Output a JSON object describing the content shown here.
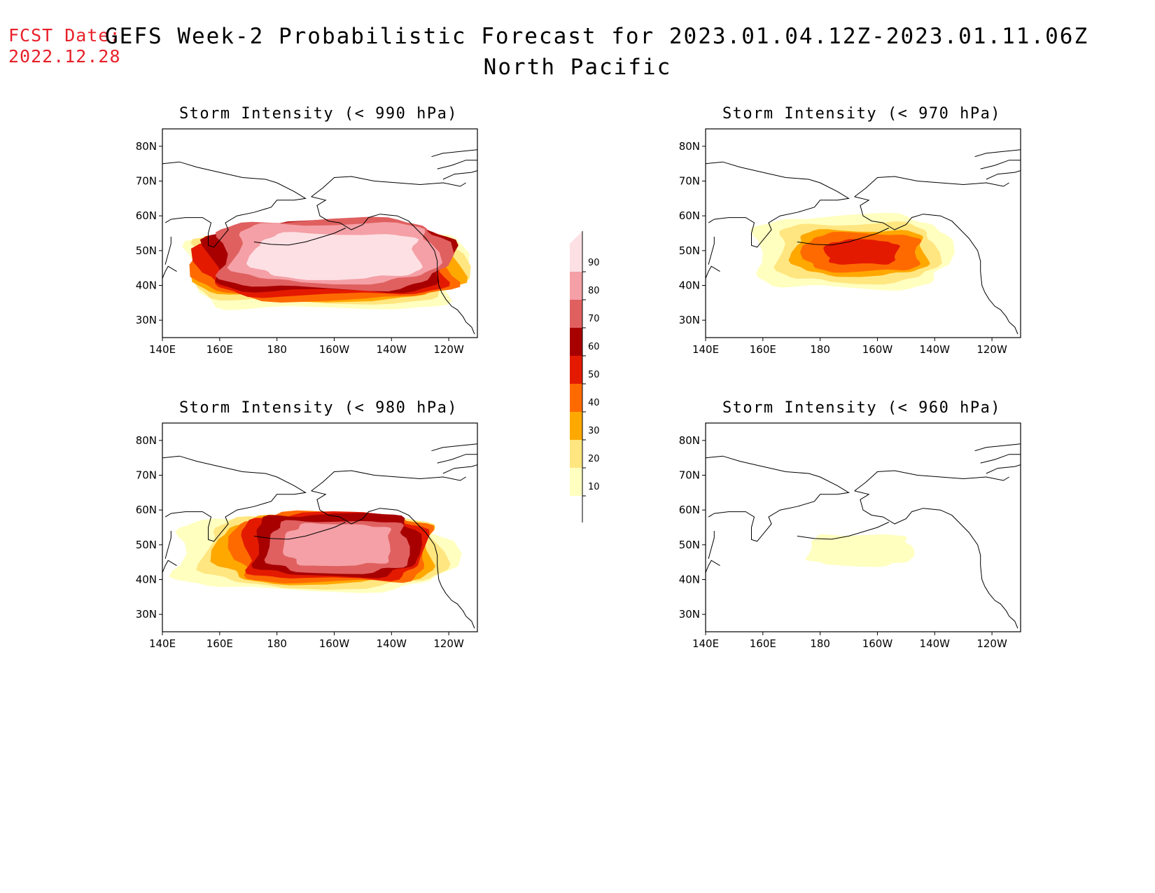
{
  "forecast_date": {
    "label": "FCST Date:",
    "value": "2022.12.28"
  },
  "title": {
    "line1": "GEFS Week-2 Probabilistic Forecast for 2023.01.04.12Z-2023.01.11.06Z",
    "line2": "North Pacific"
  },
  "colors": {
    "label_red": "#e8202a",
    "levels": [
      "#ffffc0",
      "#ffe680",
      "#ffa800",
      "#ff6a00",
      "#e41a00",
      "#a80000",
      "#e06060",
      "#f4a0a6",
      "#fde0e4"
    ]
  },
  "chart_data": [
    {
      "type": "heatmap",
      "title": "Storm Intensity (< 990 hPa)",
      "x_ticks": [
        "140E",
        "160E",
        "180",
        "160W",
        "140W",
        "120W"
      ],
      "y_ticks": [
        "80N",
        "70N",
        "60N",
        "50N",
        "40N",
        "30N"
      ],
      "xlim": [
        140,
        250
      ],
      "ylim": [
        25,
        85
      ],
      "field": [
        {
          "level": 10,
          "lon": [
            150,
            245
          ],
          "lat": [
            33,
            57
          ]
        },
        {
          "level": 20,
          "lon": [
            151,
            244
          ],
          "lat": [
            35,
            56
          ]
        },
        {
          "level": 30,
          "lon": [
            152,
            243
          ],
          "lat": [
            36,
            56
          ]
        },
        {
          "level": 40,
          "lon": [
            153,
            242
          ],
          "lat": [
            36,
            56
          ]
        },
        {
          "level": 50,
          "lon": [
            154,
            241
          ],
          "lat": [
            37,
            57
          ]
        },
        {
          "level": 60,
          "lon": [
            156,
            240
          ],
          "lat": [
            38,
            58
          ]
        },
        {
          "level": 70,
          "lon": [
            159,
            238
          ],
          "lat": [
            39,
            59
          ]
        },
        {
          "level": 80,
          "lon": [
            165,
            235
          ],
          "lat": [
            41,
            58
          ]
        },
        {
          "level": 90,
          "lon": [
            172,
            230
          ],
          "lat": [
            42,
            55
          ]
        }
      ]
    },
    {
      "type": "heatmap",
      "title": "Storm Intensity (< 970 hPa)",
      "x_ticks": [
        "140E",
        "160E",
        "180",
        "160W",
        "140W",
        "120W"
      ],
      "y_ticks": [
        "80N",
        "70N",
        "60N",
        "50N",
        "40N",
        "30N"
      ],
      "xlim": [
        140,
        250
      ],
      "ylim": [
        25,
        85
      ],
      "field": [
        {
          "level": 10,
          "lon": [
            157,
            224
          ],
          "lat": [
            39,
            60
          ]
        },
        {
          "level": 20,
          "lon": [
            165,
            220
          ],
          "lat": [
            41,
            58
          ]
        },
        {
          "level": 30,
          "lon": [
            171,
            217
          ],
          "lat": [
            43,
            56
          ]
        },
        {
          "level": 40,
          "lon": [
            175,
            215
          ],
          "lat": [
            44,
            55
          ]
        },
        {
          "level": 50,
          "lon": [
            182,
            207
          ],
          "lat": [
            46,
            53
          ]
        }
      ]
    },
    {
      "type": "heatmap",
      "title": "Storm Intensity (< 980 hPa)",
      "x_ticks": [
        "140E",
        "160E",
        "180",
        "160W",
        "140W",
        "120W"
      ],
      "y_ticks": [
        "80N",
        "70N",
        "60N",
        "50N",
        "40N",
        "30N"
      ],
      "xlim": [
        140,
        250
      ],
      "ylim": [
        25,
        85
      ],
      "field": [
        {
          "level": 10,
          "lon": [
            144,
            240
          ],
          "lat": [
            37,
            58
          ]
        },
        {
          "level": 20,
          "lon": [
            155,
            238
          ],
          "lat": [
            38,
            58
          ]
        },
        {
          "level": 30,
          "lon": [
            160,
            235
          ],
          "lat": [
            39,
            58
          ]
        },
        {
          "level": 40,
          "lon": [
            165,
            233
          ],
          "lat": [
            39,
            59
          ]
        },
        {
          "level": 50,
          "lon": [
            168,
            231
          ],
          "lat": [
            40,
            59
          ]
        },
        {
          "level": 60,
          "lon": [
            172,
            229
          ],
          "lat": [
            41,
            59
          ]
        },
        {
          "level": 70,
          "lon": [
            177,
            226
          ],
          "lat": [
            42,
            57
          ]
        },
        {
          "level": 80,
          "lon": [
            183,
            220
          ],
          "lat": [
            44,
            56
          ]
        }
      ]
    },
    {
      "type": "heatmap",
      "title": "Storm Intensity (< 960 hPa)",
      "x_ticks": [
        "140E",
        "160E",
        "180",
        "160W",
        "140W",
        "120W"
      ],
      "y_ticks": [
        "80N",
        "70N",
        "60N",
        "50N",
        "40N",
        "30N"
      ],
      "xlim": [
        140,
        250
      ],
      "ylim": [
        25,
        85
      ],
      "field": [
        {
          "level": 10,
          "lon": [
            176,
            212
          ],
          "lat": [
            44,
            53
          ]
        }
      ]
    }
  ],
  "colorbar": {
    "levels": [
      "10",
      "20",
      "30",
      "40",
      "50",
      "60",
      "70",
      "80",
      "90"
    ]
  }
}
